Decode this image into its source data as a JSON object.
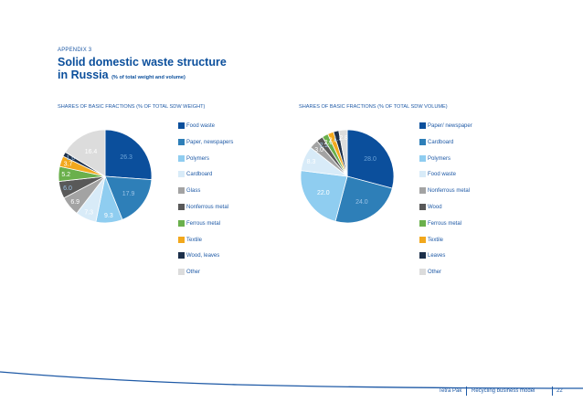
{
  "header": {
    "appendix": "APPENDIX 3",
    "title_line1": "Solid domestic waste structure",
    "title_line2": "in Russia",
    "title_sub": "(% of total weight and volume)"
  },
  "footer": {
    "brand": "Tetra Pak",
    "document": "Recycling business model",
    "page": "22"
  },
  "colors": {
    "accent": "#0b4f9c",
    "curve": "#1f5aa6"
  },
  "chart_data": [
    {
      "type": "pie",
      "title": "SHARES OF BASIC FRACTIONS (% OF TOTAL SDW WEIGHT)",
      "slices": [
        {
          "label": "Food waste",
          "value": 26.3,
          "value_label": "26.3",
          "color": "#0b4f9c"
        },
        {
          "label": "Paper, newspapers",
          "value": 17.9,
          "value_label": "17.9",
          "color": "#2e7fb8"
        },
        {
          "label": "Polymers",
          "value": 9.3,
          "value_label": "9.3",
          "color": "#8fcdf0"
        },
        {
          "label": "Cardboard",
          "value": 7.3,
          "value_label": "7.3",
          "color": "#d8ebf8"
        },
        {
          "label": "Glass",
          "value": 6.9,
          "value_label": "6.9",
          "color": "#a3a3a3"
        },
        {
          "label": "Nonferrous metal",
          "value": 6.0,
          "value_label": "6.0",
          "color": "#595959"
        },
        {
          "label": "Ferrous metal",
          "value": 5.2,
          "value_label": "5.2",
          "color": "#6ab04c"
        },
        {
          "label": "Textile",
          "value": 3.7,
          "value_label": "3.7",
          "color": "#f2a81d"
        },
        {
          "label": "Wood, leaves",
          "value": 1.6,
          "value_label": "1.6",
          "color": "#1c2f4a"
        },
        {
          "label": "Other",
          "value": 16.4,
          "value_label": "16.4",
          "color": "#dcdcdc"
        }
      ]
    },
    {
      "type": "pie",
      "title": "SHARES OF BASIC FRACTIONS (% OF TOTAL SDW VOLUME)",
      "slices": [
        {
          "label": "Paper/ newspaper",
          "value": 28.0,
          "value_label": "28.0",
          "color": "#0b4f9c"
        },
        {
          "label": "Cardboard",
          "value": 24.0,
          "value_label": "24.0",
          "color": "#2e7fb8"
        },
        {
          "label": "Polymers",
          "value": 22.0,
          "value_label": "22.0",
          "color": "#8fcdf0"
        },
        {
          "label": "Food waste",
          "value": 8.3,
          "value_label": "8.3",
          "color": "#d8ebf8"
        },
        {
          "label": "Nonferrous metal",
          "value": 3.0,
          "value_label": "3.0",
          "color": "#a3a3a3"
        },
        {
          "label": "Wood",
          "value": 2.2,
          "value_label": "2.2",
          "color": "#595959"
        },
        {
          "label": "Ferrous metal",
          "value": 2.0,
          "value_label": "2.0",
          "color": "#6ab04c"
        },
        {
          "label": "Textile",
          "value": 2.0,
          "value_label": "2.0",
          "color": "#f2a81d"
        },
        {
          "label": "Leaves",
          "value": 1.8,
          "value_label": "1.8",
          "color": "#1c2f4a"
        },
        {
          "label": "Other",
          "value": 2.8,
          "value_label": "2.8",
          "color": "#dcdcdc"
        }
      ]
    }
  ]
}
